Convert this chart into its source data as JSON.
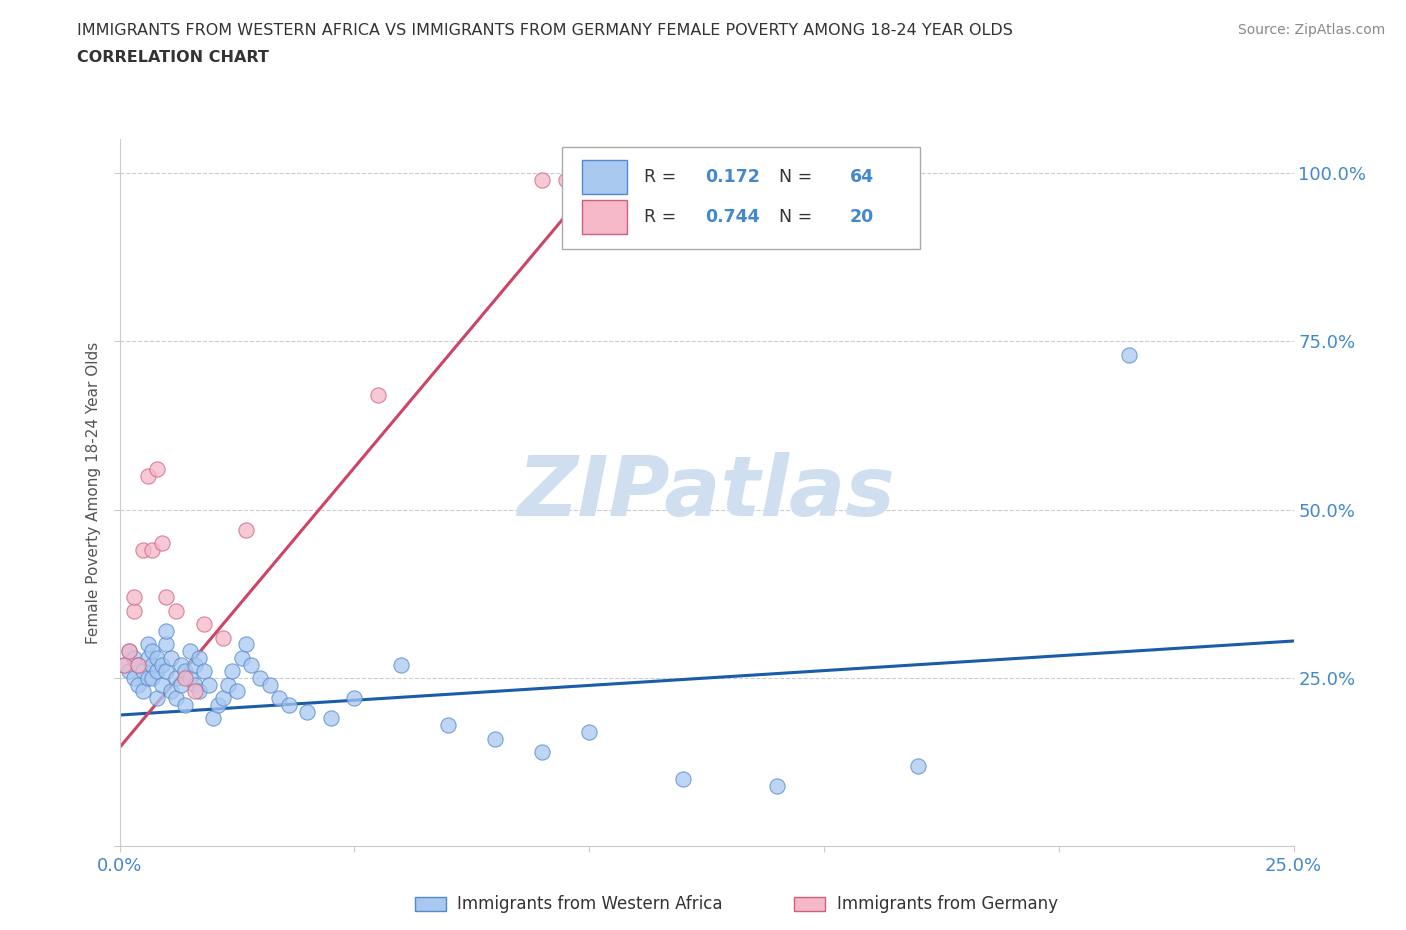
{
  "title_line1": "IMMIGRANTS FROM WESTERN AFRICA VS IMMIGRANTS FROM GERMANY FEMALE POVERTY AMONG 18-24 YEAR OLDS",
  "title_line2": "CORRELATION CHART",
  "source": "Source: ZipAtlas.com",
  "ylabel": "Female Poverty Among 18-24 Year Olds",
  "xlim": [
    0.0,
    0.25
  ],
  "ylim": [
    0.0,
    1.05
  ],
  "xticks": [
    0.0,
    0.05,
    0.1,
    0.15,
    0.2,
    0.25
  ],
  "yticks": [
    0.0,
    0.25,
    0.5,
    0.75,
    1.0
  ],
  "blue_color": "#a8c8f0",
  "blue_edge_color": "#5588cc",
  "blue_line_color": "#1a5ca8",
  "pink_color": "#f5b8c8",
  "pink_edge_color": "#d06080",
  "pink_line_color": "#cc4466",
  "R_blue": 0.172,
  "N_blue": 64,
  "R_pink": 0.744,
  "N_pink": 20,
  "watermark": "ZIPatlas",
  "legend_label_blue": "Immigrants from Western Africa",
  "legend_label_pink": "Immigrants from Germany",
  "blue_scatter_x": [
    0.001,
    0.002,
    0.002,
    0.003,
    0.003,
    0.004,
    0.004,
    0.005,
    0.005,
    0.006,
    0.006,
    0.006,
    0.007,
    0.007,
    0.007,
    0.008,
    0.008,
    0.008,
    0.009,
    0.009,
    0.01,
    0.01,
    0.01,
    0.011,
    0.011,
    0.012,
    0.012,
    0.013,
    0.013,
    0.014,
    0.014,
    0.015,
    0.015,
    0.016,
    0.016,
    0.017,
    0.017,
    0.018,
    0.019,
    0.02,
    0.021,
    0.022,
    0.023,
    0.024,
    0.025,
    0.026,
    0.027,
    0.028,
    0.03,
    0.032,
    0.034,
    0.036,
    0.04,
    0.045,
    0.05,
    0.06,
    0.07,
    0.08,
    0.09,
    0.1,
    0.12,
    0.14,
    0.17,
    0.215
  ],
  "blue_scatter_y": [
    0.27,
    0.26,
    0.29,
    0.25,
    0.28,
    0.24,
    0.27,
    0.23,
    0.26,
    0.25,
    0.28,
    0.3,
    0.27,
    0.25,
    0.29,
    0.22,
    0.26,
    0.28,
    0.24,
    0.27,
    0.26,
    0.3,
    0.32,
    0.28,
    0.23,
    0.25,
    0.22,
    0.24,
    0.27,
    0.21,
    0.26,
    0.25,
    0.29,
    0.24,
    0.27,
    0.23,
    0.28,
    0.26,
    0.24,
    0.19,
    0.21,
    0.22,
    0.24,
    0.26,
    0.23,
    0.28,
    0.3,
    0.27,
    0.25,
    0.24,
    0.22,
    0.21,
    0.2,
    0.19,
    0.22,
    0.27,
    0.18,
    0.16,
    0.14,
    0.17,
    0.1,
    0.09,
    0.12,
    0.73
  ],
  "pink_scatter_x": [
    0.001,
    0.002,
    0.003,
    0.003,
    0.004,
    0.005,
    0.006,
    0.007,
    0.008,
    0.009,
    0.01,
    0.012,
    0.014,
    0.016,
    0.018,
    0.022,
    0.027,
    0.055,
    0.09,
    0.095
  ],
  "pink_scatter_y": [
    0.27,
    0.29,
    0.35,
    0.37,
    0.27,
    0.44,
    0.55,
    0.44,
    0.56,
    0.45,
    0.37,
    0.35,
    0.25,
    0.23,
    0.33,
    0.31,
    0.47,
    0.67,
    0.99,
    0.99
  ],
  "blue_line_x": [
    0.0,
    0.25
  ],
  "blue_line_y": [
    0.195,
    0.305
  ],
  "pink_line_x": [
    -0.002,
    0.105
  ],
  "pink_line_y": [
    0.13,
    1.02
  ],
  "grid_color": "#cccccc",
  "background_color": "#ffffff",
  "title_color": "#333333",
  "axis_label_color": "#555555",
  "tick_color": "#4488cc",
  "watermark_color": "#d0dff0",
  "legend_r_n_color": "#4488cc",
  "legend_text_color": "#333333"
}
